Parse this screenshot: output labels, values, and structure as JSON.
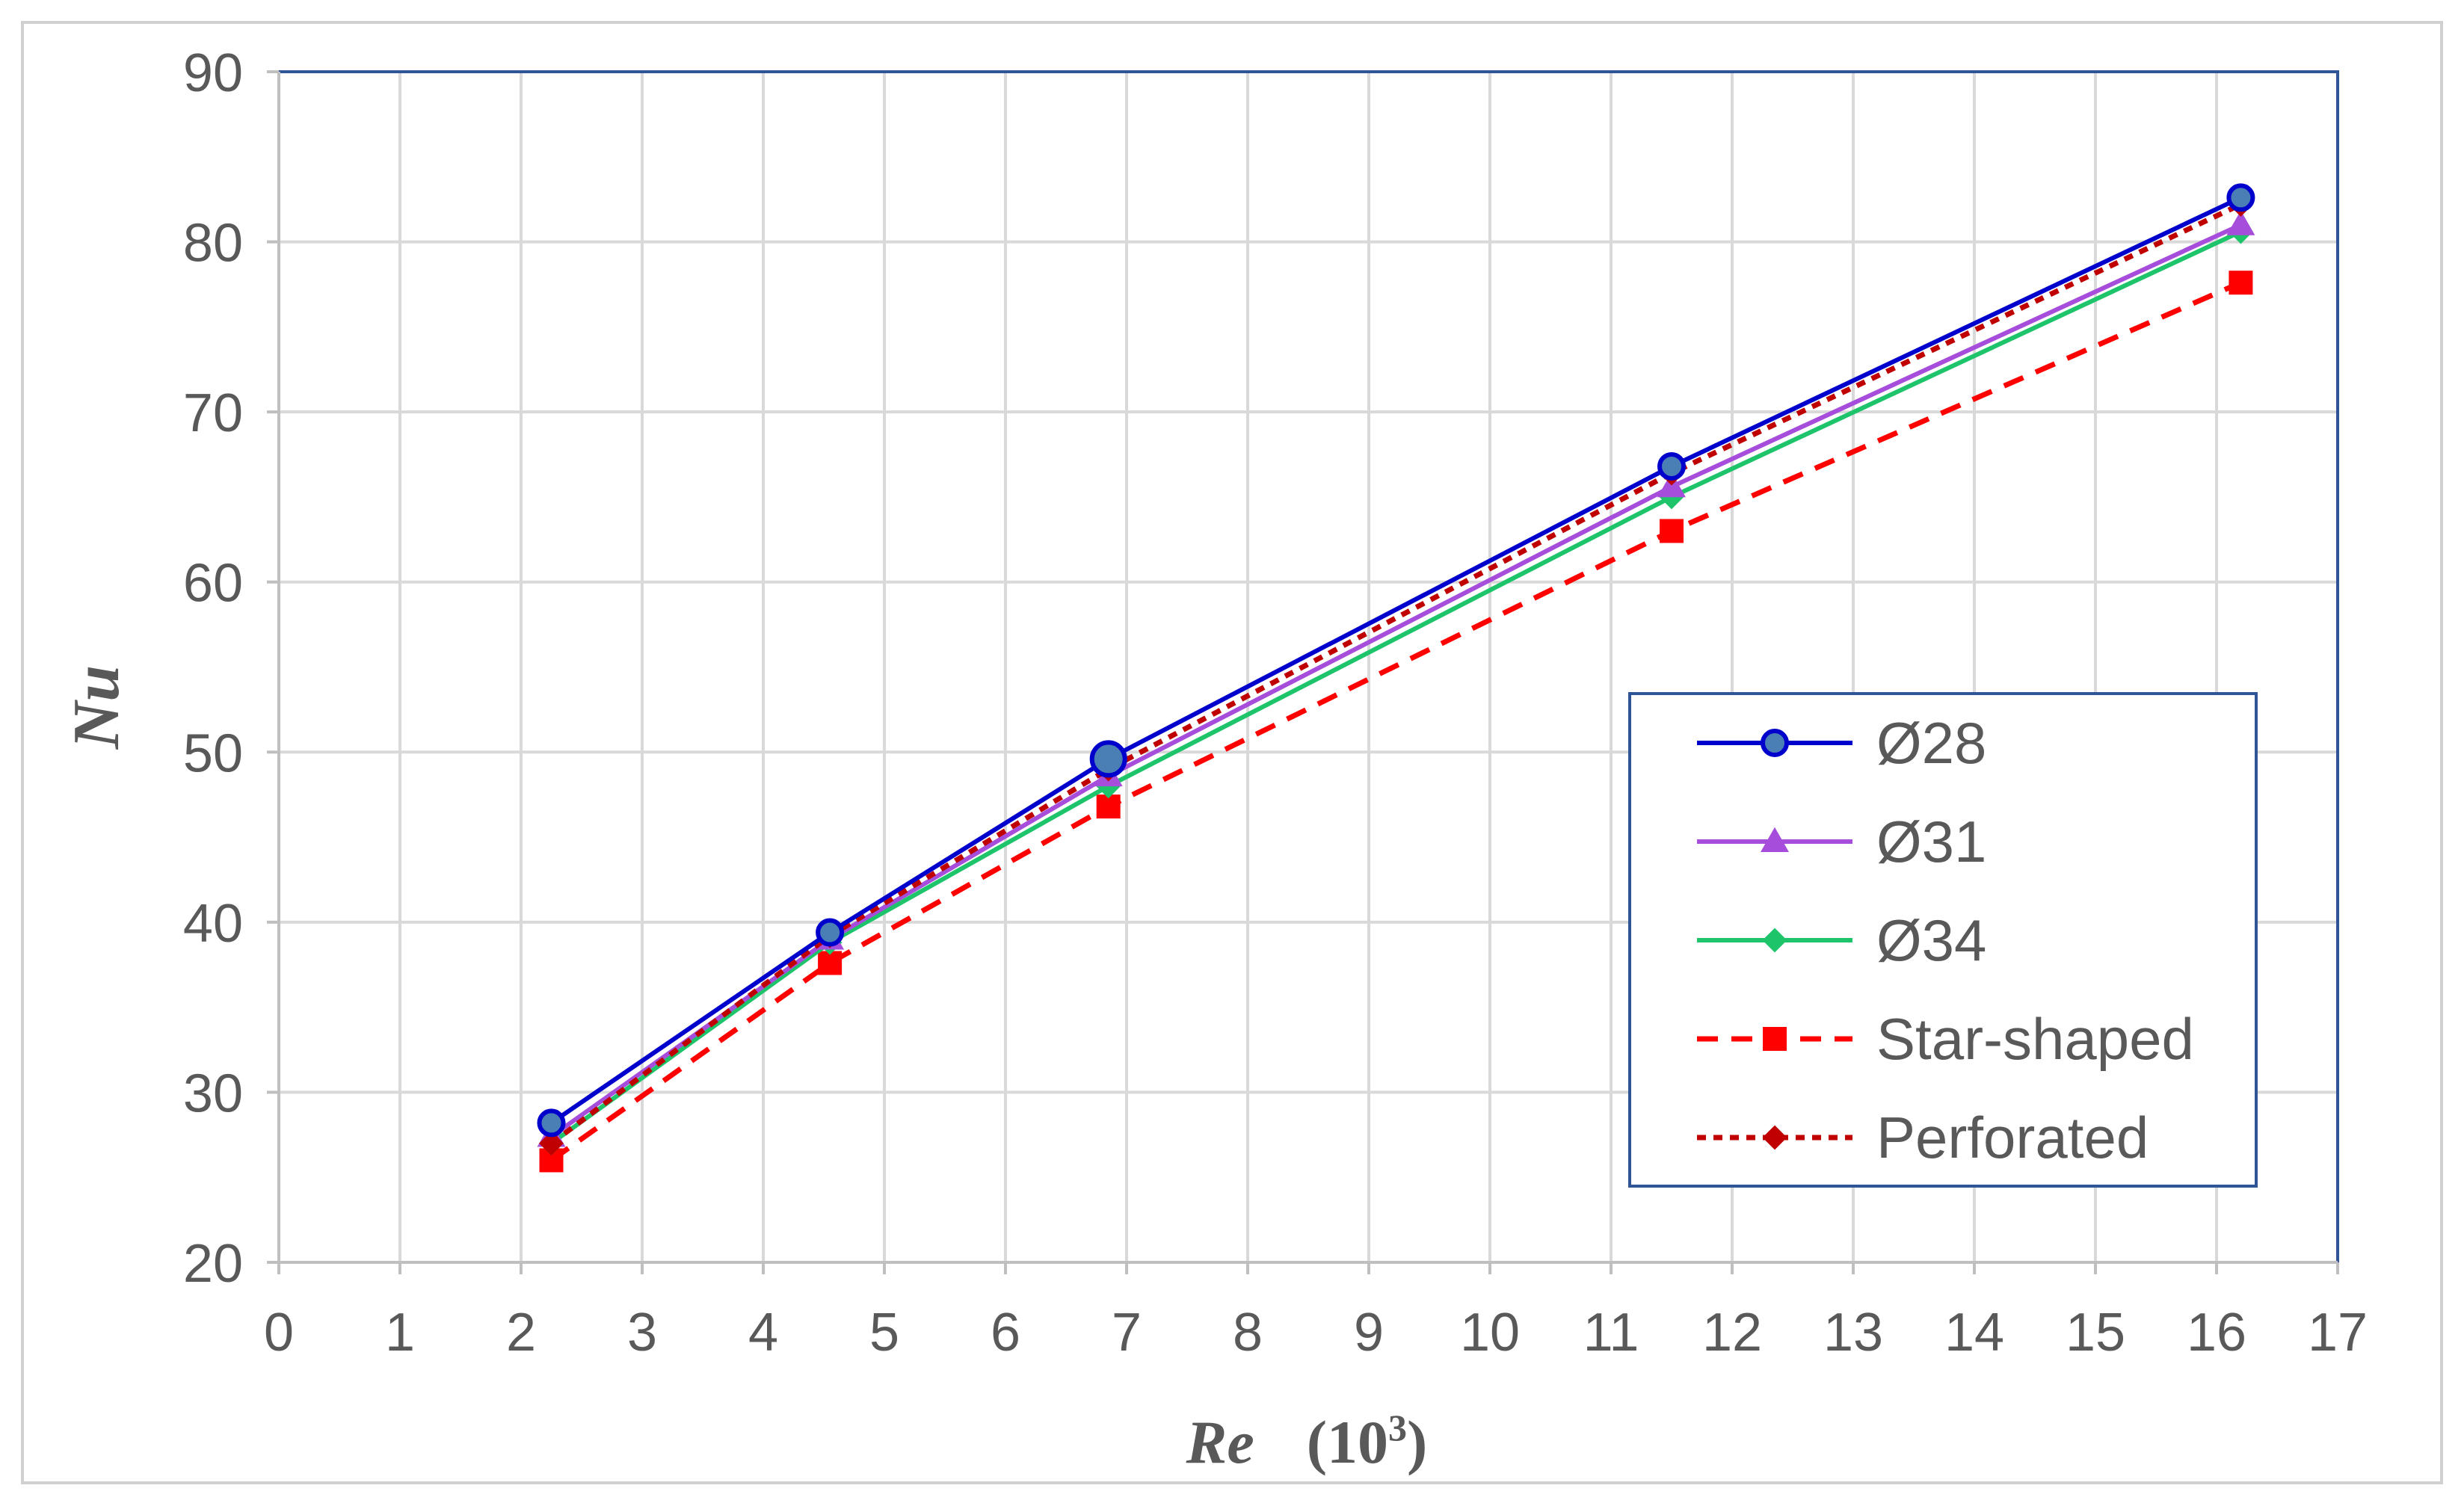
{
  "chart_data": {
    "type": "line",
    "title": "",
    "xlabel": "Re",
    "xlabel_unit_prefix": "(10",
    "xlabel_unit_exp": "3",
    "xlabel_unit_suffix": ")",
    "ylabel": "Nu",
    "xlim": [
      0,
      17
    ],
    "ylim": [
      20,
      90
    ],
    "x_ticks": [
      "0",
      "1",
      "2",
      "3",
      "4",
      "5",
      "6",
      "7",
      "8",
      "9",
      "10",
      "11",
      "12",
      "13",
      "14",
      "15",
      "16",
      "17"
    ],
    "y_ticks": [
      "20",
      "30",
      "40",
      "50",
      "60",
      "70",
      "80",
      "90"
    ],
    "grid": true,
    "legend_position": "right",
    "x": [
      2.25,
      4.55,
      6.85,
      11.5,
      16.2
    ],
    "series": [
      {
        "name": "Ø28",
        "values": [
          28.2,
          39.4,
          49.6,
          66.8,
          82.6
        ],
        "color": "#0000CC",
        "marker": "circle",
        "marker_fill": "#4A7FB5",
        "dash": "solid"
      },
      {
        "name": "Ø31",
        "values": [
          27.4,
          39.0,
          48.6,
          65.6,
          81.0
        ],
        "color": "#A64DDB",
        "marker": "triangle",
        "marker_fill": "#A64DDB",
        "dash": "solid"
      },
      {
        "name": "Ø34",
        "values": [
          27.0,
          38.8,
          48.0,
          65.0,
          80.6
        ],
        "color": "#1DC46A",
        "marker": "diamond",
        "marker_fill": "#1DC46A",
        "dash": "solid"
      },
      {
        "name": "Star-shaped",
        "values": [
          26.0,
          37.6,
          46.8,
          63.0,
          77.6
        ],
        "color": "#FF0000",
        "marker": "square",
        "marker_fill": "#FF0000",
        "dash": "dashed"
      },
      {
        "name": "Perforated",
        "values": [
          27.0,
          39.2,
          49.0,
          66.4,
          82.2
        ],
        "color": "#C00000",
        "marker": "diamond",
        "marker_fill": "#C00000",
        "dash": "dotted"
      }
    ]
  }
}
